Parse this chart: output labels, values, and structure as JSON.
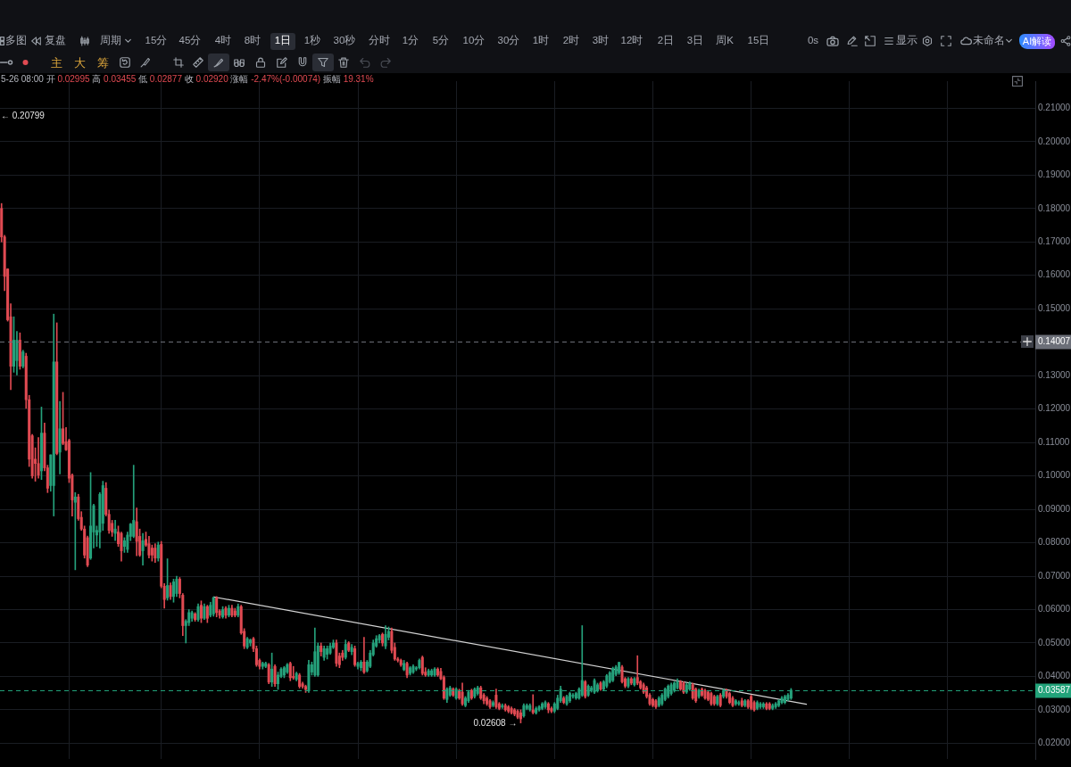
{
  "chart_data": {
    "type": "candlestick",
    "categories": [
      null,
      null,
      null,
      null,
      null,
      null,
      null,
      null,
      null,
      null,
      null,
      null,
      null,
      null,
      null,
      null,
      null,
      null,
      null,
      null,
      null,
      null,
      null,
      null,
      null,
      null,
      null,
      null,
      null,
      null,
      null,
      null,
      null,
      null,
      null,
      null,
      null,
      null,
      null,
      null,
      null,
      null,
      null,
      null,
      null,
      null,
      null,
      null,
      null,
      null,
      null,
      null,
      null,
      null,
      null,
      null,
      null,
      null,
      null,
      null,
      null,
      null,
      null,
      null,
      null,
      null,
      null,
      null,
      null,
      null,
      null,
      null,
      null,
      null,
      null,
      null,
      null,
      null,
      null,
      null,
      null,
      null,
      null,
      null,
      null,
      null,
      null,
      null,
      null,
      null,
      null,
      null,
      null,
      null,
      null,
      null,
      null,
      null,
      null,
      null,
      null,
      null,
      null,
      null,
      null,
      null,
      null,
      null,
      null,
      null,
      null,
      null,
      null,
      null,
      null,
      null,
      null,
      null,
      null,
      null,
      null,
      null,
      null,
      null,
      null,
      null,
      null,
      null,
      null,
      null,
      null,
      null,
      null,
      null,
      null,
      null,
      null,
      null,
      null,
      null,
      null,
      null,
      null,
      null,
      null,
      null,
      null,
      null,
      null,
      null,
      null,
      null,
      null,
      null,
      null,
      null,
      null,
      null,
      null,
      null,
      null,
      null,
      null,
      null,
      null,
      null,
      null,
      null,
      null,
      null,
      null,
      null,
      null,
      null,
      null,
      null,
      null,
      null,
      null,
      null,
      null,
      null,
      null,
      null,
      null,
      null,
      null,
      null,
      null,
      null,
      null,
      null,
      null,
      null,
      null,
      null,
      null,
      null,
      null,
      null,
      null,
      null,
      null,
      null,
      null,
      null,
      null,
      null,
      null,
      null,
      null,
      null,
      null,
      null,
      null,
      null,
      null,
      null,
      null,
      null,
      null,
      null,
      null,
      null,
      null,
      null,
      null,
      null,
      null,
      null,
      null,
      null,
      null,
      null,
      null,
      null,
      null,
      null,
      null,
      null,
      null,
      null,
      null,
      null,
      null,
      null,
      null,
      null,
      null,
      null,
      null,
      null,
      null,
      null,
      null,
      null,
      null,
      null,
      null,
      null,
      null,
      null,
      null,
      null,
      null,
      null,
      null,
      null,
      null,
      null,
      null,
      null,
      null,
      null,
      null,
      null,
      null,
      null,
      null,
      null,
      null,
      null,
      null,
      null,
      null,
      null,
      null,
      null,
      null,
      null,
      null,
      null,
      null,
      null,
      null,
      null,
      null,
      null,
      null,
      null,
      null,
      null,
      null,
      null,
      null,
      null,
      null,
      null,
      null,
      null,
      null,
      null,
      null,
      null,
      null,
      null,
      null,
      null,
      null,
      null,
      null,
      null,
      null,
      null,
      null,
      null,
      null,
      null,
      null,
      null,
      null,
      null,
      null,
      null,
      null,
      null,
      null
    ],
    "ohlc": [
      [
        0.18,
        0.1815,
        0.17,
        0.1715
      ],
      [
        0.1715,
        0.172,
        0.1554,
        0.1597
      ],
      [
        0.1619,
        0.162,
        0.1463,
        0.1467
      ],
      [
        0.1476,
        0.1515,
        0.1258,
        0.1328
      ],
      [
        0.1328,
        0.1476,
        0.131,
        0.1406
      ],
      [
        0.1345,
        0.1432,
        0.1302,
        0.1406
      ],
      [
        0.1406,
        0.1428,
        0.1319,
        0.1328
      ],
      [
        0.1328,
        0.1376,
        0.1323,
        0.1371
      ],
      [
        0.1358,
        0.1367,
        0.1202,
        0.1228
      ],
      [
        0.1228,
        0.1241,
        0.1028,
        0.105
      ],
      [
        0.112,
        0.1124,
        0.0993,
        0.1
      ],
      [
        0.105,
        0.1084,
        0.0984,
        0.1037
      ],
      [
        0.1037,
        0.1115,
        0.0993,
        0.1002
      ],
      [
        0.1015,
        0.1206,
        0.0989,
        0.1128
      ],
      [
        0.1128,
        0.1158,
        0.1015,
        0.1024
      ],
      [
        0.1024,
        0.1032,
        0.095,
        0.0963
      ],
      [
        0.0971,
        0.1063,
        0.0954,
        0.1063
      ],
      [
        0.0971,
        0.1484,
        0.088,
        0.1341
      ],
      [
        0.1341,
        0.1458,
        0.1063,
        0.1067
      ],
      [
        0.1071,
        0.1223,
        0.1006,
        0.1141
      ],
      [
        0.1141,
        0.125,
        0.1093,
        0.1097
      ],
      [
        0.1102,
        0.1145,
        0.1076,
        0.1078
      ],
      [
        0.1106,
        0.111,
        0.098,
        0.0993
      ],
      [
        0.1002,
        0.1006,
        0.088,
        0.0928
      ],
      [
        0.0921,
        0.095,
        0.0719,
        0.0937
      ],
      [
        0.0937,
        0.0945,
        0.0867,
        0.0872
      ],
      [
        0.0876,
        0.0893,
        0.0837,
        0.0841
      ],
      [
        0.0841,
        0.085,
        0.0754,
        0.0763
      ],
      [
        0.0815,
        0.082,
        0.0728,
        0.0733
      ],
      [
        0.0754,
        0.101,
        0.075,
        0.085
      ],
      [
        0.0832,
        0.0915,
        0.0784,
        0.0911
      ],
      [
        0.0823,
        0.085,
        0.0789,
        0.0837
      ],
      [
        0.0832,
        0.095,
        0.0784,
        0.0945
      ],
      [
        0.0858,
        0.0984,
        0.0837,
        0.0971
      ],
      [
        0.0963,
        0.098,
        0.088,
        0.0885
      ],
      [
        0.0885,
        0.0898,
        0.0828,
        0.0837
      ],
      [
        0.0858,
        0.0867,
        0.0819,
        0.0832
      ],
      [
        0.0828,
        0.0867,
        0.0806,
        0.0841
      ],
      [
        0.0832,
        0.085,
        0.0789,
        0.0797
      ],
      [
        0.0828,
        0.0832,
        0.0745,
        0.0776
      ],
      [
        0.0789,
        0.0815,
        0.0771,
        0.0806
      ],
      [
        0.078,
        0.0832,
        0.0771,
        0.0823
      ],
      [
        0.0819,
        0.0858,
        0.0806,
        0.0856
      ],
      [
        0.0819,
        0.1032,
        0.0815,
        0.0867
      ],
      [
        0.0863,
        0.0904,
        0.0761,
        0.0804
      ],
      [
        0.0819,
        0.0841,
        0.0759,
        0.0763
      ],
      [
        0.0776,
        0.0828,
        0.0733,
        0.0806
      ],
      [
        0.081,
        0.0832,
        0.0789,
        0.0793
      ],
      [
        0.0797,
        0.0819,
        0.0754,
        0.0763
      ],
      [
        0.0784,
        0.0793,
        0.0745,
        0.0763
      ],
      [
        0.0784,
        0.0797,
        0.0741,
        0.0754
      ],
      [
        0.0754,
        0.0802,
        0.0745,
        0.0793
      ],
      [
        0.0795,
        0.0804,
        0.0665,
        0.067
      ],
      [
        0.067,
        0.0678,
        0.0604,
        0.063
      ],
      [
        0.0635,
        0.0752,
        0.0628,
        0.0672
      ],
      [
        0.0672,
        0.068,
        0.063,
        0.0639
      ],
      [
        0.0639,
        0.0691,
        0.0622,
        0.0683
      ],
      [
        0.0648,
        0.07,
        0.0639,
        0.0691
      ],
      [
        0.0691,
        0.0696,
        0.0635,
        0.0648
      ],
      [
        0.0643,
        0.0648,
        0.0522,
        0.0552
      ],
      [
        0.0552,
        0.057,
        0.05,
        0.0565
      ],
      [
        0.0561,
        0.06,
        0.0552,
        0.0591
      ],
      [
        0.0574,
        0.0596,
        0.0565,
        0.0591
      ],
      [
        0.0587,
        0.0591,
        0.0565,
        0.057
      ],
      [
        0.057,
        0.0617,
        0.0565,
        0.0609
      ],
      [
        0.0613,
        0.0626,
        0.0561,
        0.0574
      ],
      [
        0.0574,
        0.0617,
        0.057,
        0.0609
      ],
      [
        0.0609,
        0.0613,
        0.0561,
        0.0574
      ],
      [
        0.0583,
        0.0622,
        0.0578,
        0.0613
      ],
      [
        0.0587,
        0.0638,
        0.058,
        0.0635
      ],
      [
        0.0635,
        0.0639,
        0.0578,
        0.0591
      ],
      [
        0.0596,
        0.06,
        0.0574,
        0.0583
      ],
      [
        0.0578,
        0.0609,
        0.0574,
        0.06
      ],
      [
        0.0604,
        0.0609,
        0.0574,
        0.0583
      ],
      [
        0.0583,
        0.0613,
        0.0578,
        0.0604
      ],
      [
        0.0604,
        0.0613,
        0.0578,
        0.0583
      ],
      [
        0.0596,
        0.0604,
        0.0578,
        0.0583
      ],
      [
        0.0583,
        0.0617,
        0.0578,
        0.0609
      ],
      [
        0.0609,
        0.0613,
        0.0526,
        0.053
      ],
      [
        0.0535,
        0.0543,
        0.0483,
        0.0491
      ],
      [
        0.0487,
        0.0517,
        0.0483,
        0.0513
      ],
      [
        0.05,
        0.0512,
        0.0491,
        0.0509
      ],
      [
        0.0513,
        0.0517,
        0.0474,
        0.0483
      ],
      [
        0.0483,
        0.0491,
        0.043,
        0.0435
      ],
      [
        0.0448,
        0.0452,
        0.0422,
        0.043
      ],
      [
        0.043,
        0.0443,
        0.0422,
        0.0439
      ],
      [
        0.043,
        0.0443,
        0.0426,
        0.0439
      ],
      [
        0.0435,
        0.0439,
        0.0378,
        0.0383
      ],
      [
        0.0383,
        0.047,
        0.037,
        0.0422
      ],
      [
        0.043,
        0.0435,
        0.037,
        0.0378
      ],
      [
        0.0378,
        0.0413,
        0.0361,
        0.0404
      ],
      [
        0.04,
        0.0426,
        0.0396,
        0.0422
      ],
      [
        0.0404,
        0.043,
        0.0396,
        0.0426
      ],
      [
        0.0413,
        0.0439,
        0.0409,
        0.0435
      ],
      [
        0.0439,
        0.0443,
        0.0387,
        0.0396
      ],
      [
        0.04,
        0.043,
        0.0391,
        0.0396
      ],
      [
        0.0391,
        0.0413,
        0.0387,
        0.0409
      ],
      [
        0.0404,
        0.0409,
        0.0365,
        0.037
      ],
      [
        0.0378,
        0.0383,
        0.0365,
        0.037
      ],
      [
        0.037,
        0.0374,
        0.0352,
        0.0361
      ],
      [
        0.0357,
        0.0448,
        0.0352,
        0.0435
      ],
      [
        0.0413,
        0.0443,
        0.0404,
        0.0435
      ],
      [
        0.0404,
        0.0545,
        0.04,
        0.0474
      ],
      [
        0.0404,
        0.05,
        0.04,
        0.0491
      ],
      [
        0.0491,
        0.05,
        0.0461,
        0.0474
      ],
      [
        0.0457,
        0.0491,
        0.0448,
        0.0483
      ],
      [
        0.0466,
        0.0491,
        0.0452,
        0.0483
      ],
      [
        0.047,
        0.05,
        0.0466,
        0.0491
      ],
      [
        0.0487,
        0.0509,
        0.0483,
        0.05
      ],
      [
        0.05,
        0.0509,
        0.043,
        0.0439
      ],
      [
        0.0461,
        0.047,
        0.0426,
        0.0435
      ],
      [
        0.047,
        0.0478,
        0.0448,
        0.0457
      ],
      [
        0.0457,
        0.0509,
        0.0452,
        0.0496
      ],
      [
        0.05,
        0.0504,
        0.0474,
        0.0478
      ],
      [
        0.0474,
        0.0496,
        0.0465,
        0.0487
      ],
      [
        0.0483,
        0.0491,
        0.043,
        0.0435
      ],
      [
        0.043,
        0.0443,
        0.0422,
        0.0439
      ],
      [
        0.0426,
        0.0448,
        0.0417,
        0.0443
      ],
      [
        0.0443,
        0.0517,
        0.0409,
        0.0413
      ],
      [
        0.0417,
        0.0448,
        0.0413,
        0.0443
      ],
      [
        0.043,
        0.0478,
        0.0426,
        0.047
      ],
      [
        0.0465,
        0.0509,
        0.0461,
        0.05
      ],
      [
        0.0491,
        0.0522,
        0.0487,
        0.0513
      ],
      [
        0.0509,
        0.0526,
        0.05,
        0.0522
      ],
      [
        0.0526,
        0.053,
        0.0491,
        0.05
      ],
      [
        0.0491,
        0.0552,
        0.0483,
        0.0526
      ],
      [
        0.0517,
        0.0548,
        0.0509,
        0.0535
      ],
      [
        0.0535,
        0.0545,
        0.047,
        0.0478
      ],
      [
        0.0487,
        0.05,
        0.0448,
        0.0452
      ],
      [
        0.0452,
        0.0457,
        0.0443,
        0.0448
      ],
      [
        0.0448,
        0.0452,
        0.043,
        0.0435
      ],
      [
        0.042,
        0.0448,
        0.0417,
        0.0439
      ],
      [
        0.0439,
        0.0443,
        0.0396,
        0.0404
      ],
      [
        0.0409,
        0.043,
        0.0404,
        0.0426
      ],
      [
        0.0413,
        0.0435,
        0.0409,
        0.043
      ],
      [
        0.0422,
        0.043,
        0.0417,
        0.0426
      ],
      [
        0.0426,
        0.0452,
        0.0422,
        0.0448
      ],
      [
        0.0457,
        0.0461,
        0.0404,
        0.0409
      ],
      [
        0.0413,
        0.0426,
        0.04,
        0.0404
      ],
      [
        0.0404,
        0.0422,
        0.04,
        0.0417
      ],
      [
        0.0404,
        0.0422,
        0.04,
        0.0417
      ],
      [
        0.0404,
        0.0426,
        0.04,
        0.0422
      ],
      [
        0.0422,
        0.0426,
        0.04,
        0.0404
      ],
      [
        0.0415,
        0.0424,
        0.039,
        0.0393
      ],
      [
        0.0397,
        0.0402,
        0.0331,
        0.0335
      ],
      [
        0.0331,
        0.0366,
        0.0322,
        0.0362
      ],
      [
        0.0344,
        0.0371,
        0.034,
        0.0366
      ],
      [
        0.0362,
        0.0366,
        0.034,
        0.0344
      ],
      [
        0.0335,
        0.0366,
        0.0331,
        0.0362
      ],
      [
        0.0358,
        0.0362,
        0.0331,
        0.0335
      ],
      [
        0.0353,
        0.038,
        0.0313,
        0.0318
      ],
      [
        0.0313,
        0.034,
        0.0309,
        0.0335
      ],
      [
        0.0327,
        0.0358,
        0.0322,
        0.0353
      ],
      [
        0.0358,
        0.0362,
        0.0331,
        0.0335
      ],
      [
        0.034,
        0.0366,
        0.0335,
        0.0362
      ],
      [
        0.0349,
        0.0371,
        0.0344,
        0.0366
      ],
      [
        0.0366,
        0.0371,
        0.0331,
        0.0335
      ],
      [
        0.0344,
        0.0349,
        0.0318,
        0.0327
      ],
      [
        0.0335,
        0.034,
        0.0313,
        0.0318
      ],
      [
        0.0327,
        0.0331,
        0.0304,
        0.0309
      ],
      [
        0.0313,
        0.0327,
        0.0309,
        0.0322
      ],
      [
        0.0344,
        0.0362,
        0.0304,
        0.0309
      ],
      [
        0.0318,
        0.0322,
        0.03,
        0.0304
      ],
      [
        0.0309,
        0.0318,
        0.0304,
        0.0313
      ],
      [
        0.0313,
        0.0318,
        0.0296,
        0.03
      ],
      [
        0.0309,
        0.0313,
        0.0291,
        0.0296
      ],
      [
        0.0304,
        0.0309,
        0.0287,
        0.0291
      ],
      [
        0.03,
        0.0304,
        0.0282,
        0.0287
      ],
      [
        0.0296,
        0.03,
        0.0273,
        0.0278
      ],
      [
        0.0291,
        0.03,
        0.02608,
        0.0273
      ],
      [
        0.0282,
        0.0318,
        0.0278,
        0.0313
      ],
      [
        0.0304,
        0.0318,
        0.03,
        0.0313
      ],
      [
        0.03,
        0.0318,
        0.0296,
        0.0313
      ],
      [
        0.02995,
        0.03455,
        0.02877,
        0.0292
      ],
      [
        0.0291,
        0.0309,
        0.0287,
        0.0304
      ],
      [
        0.03,
        0.0313,
        0.0296,
        0.0309
      ],
      [
        0.0304,
        0.0322,
        0.03,
        0.0318
      ],
      [
        0.0309,
        0.0327,
        0.0304,
        0.0322
      ],
      [
        0.0318,
        0.0322,
        0.0291,
        0.03
      ],
      [
        0.0304,
        0.0309,
        0.0291,
        0.0296
      ],
      [
        0.0296,
        0.0322,
        0.0291,
        0.0318
      ],
      [
        0.0304,
        0.0344,
        0.03,
        0.0335
      ],
      [
        0.0327,
        0.0371,
        0.0322,
        0.0362
      ],
      [
        0.0335,
        0.034,
        0.0318,
        0.0322
      ],
      [
        0.0318,
        0.0344,
        0.0313,
        0.034
      ],
      [
        0.0327,
        0.0353,
        0.0322,
        0.0349
      ],
      [
        0.034,
        0.0349,
        0.0335,
        0.0344
      ],
      [
        0.0335,
        0.0353,
        0.0331,
        0.0349
      ],
      [
        0.0335,
        0.0366,
        0.0331,
        0.0362
      ],
      [
        0.0344,
        0.0552,
        0.034,
        0.0388
      ],
      [
        0.0384,
        0.0388,
        0.0335,
        0.034
      ],
      [
        0.0344,
        0.0375,
        0.034,
        0.0371
      ],
      [
        0.0358,
        0.0371,
        0.0353,
        0.0366
      ],
      [
        0.0353,
        0.0393,
        0.0349,
        0.0388
      ],
      [
        0.0358,
        0.038,
        0.0353,
        0.0375
      ],
      [
        0.038,
        0.0384,
        0.0358,
        0.0362
      ],
      [
        0.0362,
        0.0388,
        0.0358,
        0.0384
      ],
      [
        0.0371,
        0.0406,
        0.0366,
        0.0402
      ],
      [
        0.0384,
        0.0415,
        0.038,
        0.0411
      ],
      [
        0.0388,
        0.0428,
        0.0384,
        0.0424
      ],
      [
        0.0406,
        0.0433,
        0.0402,
        0.0428
      ],
      [
        0.0411,
        0.0443,
        0.0406,
        0.0442
      ],
      [
        0.0428,
        0.0433,
        0.038,
        0.0384
      ],
      [
        0.0393,
        0.0397,
        0.0366,
        0.0371
      ],
      [
        0.0371,
        0.0397,
        0.0366,
        0.0393
      ],
      [
        0.0393,
        0.0397,
        0.0375,
        0.038
      ],
      [
        0.0375,
        0.0397,
        0.0371,
        0.0393
      ],
      [
        0.0397,
        0.0462,
        0.0375,
        0.038
      ],
      [
        0.0384,
        0.0388,
        0.0362,
        0.0366
      ],
      [
        0.0375,
        0.038,
        0.0349,
        0.0353
      ],
      [
        0.0366,
        0.0371,
        0.0335,
        0.034
      ],
      [
        0.0344,
        0.0349,
        0.0313,
        0.0318
      ],
      [
        0.0331,
        0.0335,
        0.0309,
        0.0313
      ],
      [
        0.0327,
        0.0331,
        0.0304,
        0.0309
      ],
      [
        0.0313,
        0.034,
        0.0309,
        0.0335
      ],
      [
        0.0318,
        0.0349,
        0.0313,
        0.0344
      ],
      [
        0.0331,
        0.0366,
        0.0327,
        0.0362
      ],
      [
        0.034,
        0.0375,
        0.0335,
        0.0371
      ],
      [
        0.0349,
        0.038,
        0.0344,
        0.0375
      ],
      [
        0.0358,
        0.0384,
        0.0353,
        0.038
      ],
      [
        0.0366,
        0.0393,
        0.0362,
        0.0384
      ],
      [
        0.0384,
        0.0388,
        0.0358,
        0.0362
      ],
      [
        0.038,
        0.0384,
        0.0349,
        0.0353
      ],
      [
        0.0353,
        0.038,
        0.0349,
        0.0375
      ],
      [
        0.0362,
        0.0384,
        0.0358,
        0.038
      ],
      [
        0.0375,
        0.038,
        0.0331,
        0.0335
      ],
      [
        0.0362,
        0.0366,
        0.0322,
        0.0327
      ],
      [
        0.034,
        0.0362,
        0.0335,
        0.0358
      ],
      [
        0.0362,
        0.0366,
        0.034,
        0.0344
      ],
      [
        0.0358,
        0.0362,
        0.0331,
        0.0335
      ],
      [
        0.0353,
        0.0358,
        0.0327,
        0.0331
      ],
      [
        0.0349,
        0.0353,
        0.0313,
        0.0318
      ],
      [
        0.034,
        0.0344,
        0.0313,
        0.0318
      ],
      [
        0.0318,
        0.0344,
        0.0313,
        0.034
      ],
      [
        0.0344,
        0.0349,
        0.0309,
        0.0313
      ],
      [
        0.034,
        0.0362,
        0.0335,
        0.0358
      ],
      [
        0.0358,
        0.0362,
        0.0335,
        0.034
      ],
      [
        0.0349,
        0.0353,
        0.0318,
        0.0322
      ],
      [
        0.0335,
        0.034,
        0.0309,
        0.0313
      ],
      [
        0.0318,
        0.0331,
        0.0313,
        0.0327
      ],
      [
        0.0318,
        0.0327,
        0.0313,
        0.0322
      ],
      [
        0.0327,
        0.0335,
        0.0309,
        0.0313
      ],
      [
        0.0313,
        0.0331,
        0.0309,
        0.0327
      ],
      [
        0.0327,
        0.0331,
        0.0304,
        0.0309
      ],
      [
        0.034,
        0.0344,
        0.03,
        0.0304
      ],
      [
        0.0322,
        0.0327,
        0.0296,
        0.03
      ],
      [
        0.0304,
        0.0327,
        0.03,
        0.0322
      ],
      [
        0.0309,
        0.0322,
        0.0304,
        0.0318
      ],
      [
        0.0309,
        0.0322,
        0.0304,
        0.0318
      ],
      [
        0.0318,
        0.0322,
        0.03,
        0.0304
      ],
      [
        0.0318,
        0.0322,
        0.03,
        0.0304
      ],
      [
        0.0304,
        0.0318,
        0.03,
        0.0313
      ],
      [
        0.0309,
        0.0322,
        0.0304,
        0.0318
      ],
      [
        0.0313,
        0.0331,
        0.0309,
        0.0327
      ],
      [
        0.0322,
        0.034,
        0.0318,
        0.0335
      ],
      [
        0.0322,
        0.0344,
        0.0318,
        0.034
      ],
      [
        0.0331,
        0.0349,
        0.0327,
        0.0344
      ],
      [
        0.0335,
        0.0364,
        0.0331,
        0.03587
      ],
      null,
      null,
      null,
      null,
      null,
      null,
      null,
      null,
      null,
      null,
      null,
      null,
      null,
      null,
      null,
      null,
      null,
      null,
      null,
      null,
      null,
      null,
      null,
      null,
      null,
      null,
      null,
      null,
      null,
      null,
      null,
      null,
      null,
      null,
      null,
      null,
      null,
      null,
      null,
      null,
      null,
      null,
      null,
      null,
      null,
      null,
      null,
      null,
      null,
      null,
      null,
      null,
      null,
      null,
      null,
      null,
      null,
      null,
      null,
      null,
      null,
      null,
      null,
      null,
      null,
      null,
      null,
      null,
      null,
      null,
      null,
      null,
      null,
      null,
      null,
      null,
      null,
      null,
      null
    ],
    "series": [
      {
        "type": "line",
        "color": "#d4d4d4",
        "values": [
          null,
          null,
          null,
          null,
          null,
          null,
          null,
          null,
          null,
          null,
          null,
          null,
          null,
          null,
          null,
          null,
          null,
          null,
          null,
          null,
          null,
          null,
          null,
          null,
          null,
          null,
          null,
          null,
          null,
          null,
          null,
          null,
          null,
          null,
          null,
          null,
          null,
          null,
          null,
          null,
          null,
          null,
          null,
          null,
          null,
          null,
          null,
          null,
          null,
          null,
          null,
          null,
          null,
          null,
          null,
          null,
          null,
          null,
          null,
          null,
          null,
          null,
          null,
          null,
          null,
          null,
          null,
          null,
          null,
          0.0638,
          null,
          null,
          null,
          null,
          null,
          null,
          null,
          null,
          null,
          null,
          null,
          null,
          null,
          null,
          null,
          null,
          null,
          null,
          null,
          null,
          null,
          null,
          null,
          null,
          null,
          null,
          null,
          null,
          null,
          null,
          null,
          null,
          null,
          null,
          null,
          null,
          null,
          null,
          null,
          null,
          null,
          null,
          null,
          null,
          null,
          null,
          null,
          null,
          null,
          null,
          null,
          null,
          null,
          null,
          null,
          null,
          null,
          null,
          null,
          null,
          null,
          null,
          null,
          null,
          null,
          null,
          null,
          null,
          null,
          null,
          null,
          null,
          null,
          null,
          null,
          null,
          null,
          null,
          null,
          null,
          null,
          null,
          null,
          null,
          null,
          null,
          null,
          null,
          null,
          null,
          null,
          null,
          null,
          null,
          null,
          null,
          null,
          null,
          null,
          null,
          null,
          null,
          null,
          null,
          null,
          null,
          null,
          null,
          null,
          null,
          null,
          null,
          null,
          null,
          null,
          null,
          null,
          null,
          null,
          null,
          null,
          null,
          null,
          null,
          null,
          null,
          null,
          null,
          null,
          null,
          null,
          null,
          null,
          null,
          null,
          null,
          null,
          null,
          null,
          null,
          null,
          null,
          null,
          null,
          null,
          null,
          null,
          null,
          null,
          null,
          null,
          null,
          null,
          null,
          null,
          null,
          null,
          null,
          null,
          null,
          null,
          null,
          null,
          null,
          null,
          null,
          null,
          null,
          null,
          null,
          null,
          null,
          null,
          null,
          null,
          null,
          null,
          null,
          null,
          null,
          null,
          null,
          null,
          null,
          null,
          null,
          null,
          null,
          null,
          null,
          null,
          null,
          0.0317,
          null,
          null,
          null,
          null,
          null,
          null,
          null,
          null,
          null,
          null,
          null,
          null,
          null,
          null,
          null,
          null,
          null,
          null,
          null,
          null,
          null,
          null,
          null,
          null,
          null,
          null,
          null,
          null,
          null,
          null,
          null,
          null,
          null,
          null,
          null,
          null,
          null,
          null,
          null,
          null,
          null,
          null,
          null,
          null,
          null,
          null,
          null,
          null,
          null,
          null,
          null,
          null,
          null,
          null,
          null,
          null,
          null,
          null,
          null,
          null,
          null,
          null,
          null,
          null,
          null,
          null,
          null,
          null,
          null,
          null,
          null,
          null,
          null,
          null
        ]
      }
    ],
    "ylim": [
      0.0153,
      0.2181
    ],
    "yticks": [
      {
        "value": 0.02,
        "label": "0.02000"
      },
      {
        "value": 0.03,
        "label": "0.03000"
      },
      {
        "value": 0.04,
        "label": "0.04000"
      },
      {
        "value": 0.05,
        "label": "0.05000"
      },
      {
        "value": 0.06,
        "label": "0.06000"
      },
      {
        "value": 0.07,
        "label": "0.07000"
      },
      {
        "value": 0.08,
        "label": "0.08000"
      },
      {
        "value": 0.09,
        "label": "0.09000"
      },
      {
        "value": 0.1,
        "label": "0.10000"
      },
      {
        "value": 0.11,
        "label": "0.11000"
      },
      {
        "value": 0.12,
        "label": "0.12000"
      },
      {
        "value": 0.13,
        "label": "0.13000"
      },
      {
        "value": 0.15,
        "label": "0.15000"
      },
      {
        "value": 0.16,
        "label": "0.16000"
      },
      {
        "value": 0.17,
        "label": "0.17000"
      },
      {
        "value": 0.18,
        "label": "0.18000"
      },
      {
        "value": 0.19,
        "label": "0.19000"
      },
      {
        "value": 0.2,
        "label": "0.20000"
      },
      {
        "value": 0.21,
        "label": "0.21000"
      }
    ],
    "grid": true,
    "tick_labels": "y",
    "ref_lines": [
      {
        "axis": "y",
        "value": 0.14007,
        "label": "0.14007",
        "color": "#6c6f78",
        "line_style": "dashed"
      },
      {
        "axis": "y",
        "value": 0.03587,
        "label": "0.03587",
        "color": "#22a37a",
        "line_style": "dashed"
      }
    ],
    "annotations": [
      "5-26 08:00 开 0.02995 高 0.03455 低 0.02877 收 0.02920 涨幅 -2.47%(-0.00074) 振幅 19.31%",
      "← 0.20799",
      "0.02608 →",
      "多图",
      "复盘",
      "周期",
      "15分",
      "45分",
      "4时",
      "8时",
      "1日",
      "1秒",
      "30秒",
      "分时",
      "1分",
      "5分",
      "10分",
      "30分",
      "1时",
      "2时",
      "3时",
      "12时",
      "2日",
      "3日",
      "周K",
      "15日",
      "0s",
      "显示",
      "未命名",
      "AI解读",
      "主",
      "大",
      "筹"
    ]
  }
}
